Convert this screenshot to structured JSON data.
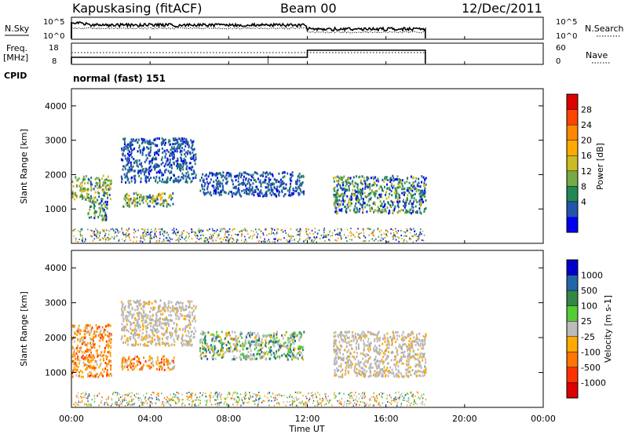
{
  "header": {
    "station": "Kapuskasing (fitACF)",
    "beam": "Beam 00",
    "date": "12/Dec/2011"
  },
  "summary_panels": {
    "nsky_label": "N.Sky",
    "nsky_ticks": [
      "10^5",
      "10^0"
    ],
    "nsearch_label": "N.Search",
    "freq_label": "Freq.",
    "freq_unit": "[MHz]",
    "freq_ticks": [
      "18",
      "8"
    ],
    "nave_label": "Nave",
    "nave_ticks": [
      "60",
      "0"
    ],
    "cpid_label": "CPID",
    "cpid_value": "normal (fast) 151"
  },
  "time_axis": {
    "title": "Time UT",
    "ticks": [
      "00:00",
      "04:00",
      "08:00",
      "12:00",
      "16:00",
      "20:00",
      "00:00"
    ]
  },
  "chart_data": [
    {
      "type": "heatmap",
      "name": "power-panel",
      "ylabel": "Slant Range [km]",
      "xlabel": "",
      "x_range_hours": [
        0,
        24
      ],
      "ylim": [
        0,
        4500
      ],
      "y_ticks": [
        "4000",
        "3000",
        "2000",
        "1000"
      ],
      "colorbar": {
        "label": "Power [dB]",
        "ticks": [
          "28",
          "24",
          "20",
          "16",
          "12",
          "8",
          "4"
        ],
        "colors": [
          "#dd0000",
          "#ff4400",
          "#ff8800",
          "#ffaa00",
          "#ccbb22",
          "#77aa44",
          "#228855",
          "#2255aa",
          "#0000ee"
        ]
      },
      "regions": [
        {
          "t0": 0.0,
          "t1": 2.0,
          "r0": 1300,
          "r1": 2000,
          "level": "mid-high"
        },
        {
          "t0": 0.8,
          "t1": 1.8,
          "r0": 700,
          "r1": 1300,
          "level": "mid"
        },
        {
          "t0": 2.6,
          "t1": 5.2,
          "r0": 1100,
          "r1": 1500,
          "level": "mid-high"
        },
        {
          "t0": 2.5,
          "t1": 6.3,
          "r0": 1800,
          "r1": 3100,
          "level": "low"
        },
        {
          "t0": 6.5,
          "t1": 11.8,
          "r0": 1400,
          "r1": 2100,
          "level": "low"
        },
        {
          "t0": 13.3,
          "t1": 18.0,
          "r0": 900,
          "r1": 2000,
          "level": "mid"
        }
      ]
    },
    {
      "type": "heatmap",
      "name": "velocity-panel",
      "ylabel": "Slant Range [km]",
      "xlabel": "Time UT",
      "x_range_hours": [
        0,
        24
      ],
      "ylim": [
        0,
        4500
      ],
      "y_ticks": [
        "4000",
        "3000",
        "2000",
        "1000"
      ],
      "colorbar": {
        "label": "Velocity [m s-1]",
        "ticks": [
          "1000",
          "500",
          "100",
          "25",
          "-25",
          "-100",
          "-500",
          "-1000"
        ],
        "colors": [
          "#0000cc",
          "#2266aa",
          "#338844",
          "#55cc33",
          "#bbbbbb",
          "#ffaa00",
          "#ff7700",
          "#ff3300",
          "#dd0000"
        ]
      },
      "regions": [
        {
          "t0": 0.0,
          "t1": 2.0,
          "r0": 900,
          "r1": 2400,
          "level": "negative"
        },
        {
          "t0": 2.5,
          "t1": 5.2,
          "r0": 1100,
          "r1": 1500,
          "level": "negative"
        },
        {
          "t0": 2.5,
          "t1": 6.3,
          "r0": 1800,
          "r1": 3100,
          "level": "ground"
        },
        {
          "t0": 6.5,
          "t1": 11.8,
          "r0": 1400,
          "r1": 2200,
          "level": "mixed"
        },
        {
          "t0": 13.3,
          "t1": 18.0,
          "r0": 900,
          "r1": 2200,
          "level": "ground"
        }
      ]
    }
  ]
}
